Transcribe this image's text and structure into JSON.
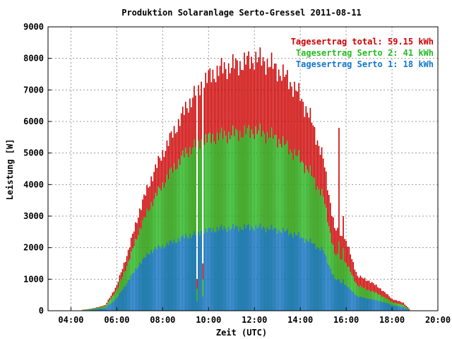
{
  "chart_data": {
    "type": "bar",
    "title": "Produktion Solaranlage Serto-Gressel 2011-08-11",
    "xlabel": "Zeit (UTC)",
    "ylabel": "Leistung [W]",
    "xlim": [
      3.0,
      20.0
    ],
    "ylim": [
      0,
      9000
    ],
    "x_ticks": [
      4,
      6,
      8,
      10,
      12,
      14,
      16,
      18,
      20
    ],
    "x_tick_labels": [
      "04:00",
      "06:00",
      "08:00",
      "10:00",
      "12:00",
      "14:00",
      "16:00",
      "18:00",
      "20:00"
    ],
    "y_ticks": [
      0,
      1000,
      2000,
      3000,
      4000,
      5000,
      6000,
      7000,
      8000,
      9000
    ],
    "y_tick_labels": [
      "0",
      "1000",
      "2000",
      "3000",
      "4000",
      "5000",
      "6000",
      "7000",
      "8000",
      "9000"
    ],
    "grid": true,
    "legend_position": "top-right",
    "series": [
      {
        "name": "Tagesertrag total: 59.15 kWh",
        "color": "#cc0000"
      },
      {
        "name": "Tagesertrag Serto 2: 41 kWh",
        "color": "#22bb22"
      },
      {
        "name": "Tagesertrag Serto 1: 18 kWh",
        "color": "#1177cc"
      }
    ],
    "anchors": {
      "x": [
        4.5,
        5.0,
        5.5,
        6.0,
        6.5,
        7.0,
        7.5,
        8.0,
        8.5,
        9.0,
        9.5,
        10.0,
        10.5,
        11.0,
        11.5,
        12.0,
        12.5,
        13.0,
        13.5,
        14.0,
        14.5,
        15.0,
        15.5,
        16.0,
        16.5,
        17.0,
        17.5,
        18.0,
        18.5,
        18.8
      ],
      "total": [
        30,
        80,
        180,
        800,
        1900,
        3200,
        4200,
        5000,
        5700,
        6400,
        7000,
        7400,
        7650,
        7750,
        7850,
        8000,
        7900,
        7650,
        7300,
        6800,
        6000,
        4800,
        2600,
        2200,
        1100,
        950,
        700,
        380,
        250,
        30
      ],
      "serto2": [
        25,
        70,
        150,
        650,
        1550,
        2600,
        3400,
        4000,
        4550,
        5000,
        5300,
        5450,
        5550,
        5600,
        5650,
        5700,
        5600,
        5450,
        5150,
        4800,
        4300,
        3600,
        1800,
        1500,
        800,
        650,
        500,
        280,
        180,
        20
      ],
      "serto1": [
        10,
        40,
        80,
        400,
        950,
        1500,
        1900,
        2050,
        2200,
        2350,
        2450,
        2550,
        2600,
        2620,
        2640,
        2650,
        2620,
        2570,
        2480,
        2350,
        2150,
        1900,
        1000,
        800,
        450,
        380,
        300,
        180,
        110,
        10
      ]
    },
    "dips": [
      {
        "x": 9.5,
        "total": 1000,
        "serto2": 700,
        "serto1": 300
      },
      {
        "x": 9.75,
        "total": 1500,
        "serto2": 1000,
        "serto1": 450
      },
      {
        "x": 15.7,
        "total": 5800,
        "serto2": 2200,
        "serto1": 1000
      },
      {
        "x": 15.85,
        "total": 3000,
        "serto2": 2000,
        "serto1": 1000
      }
    ]
  }
}
